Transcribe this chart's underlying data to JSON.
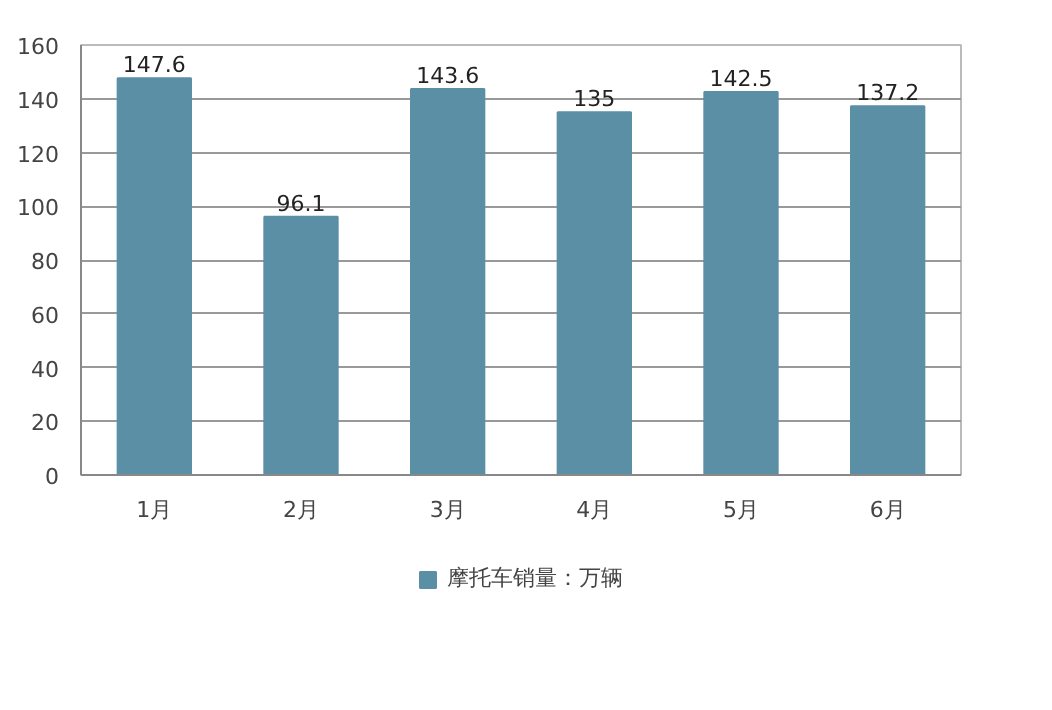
{
  "chart_data": {
    "type": "bar",
    "categories": [
      "1月",
      "2月",
      "3月",
      "4月",
      "5月",
      "6月"
    ],
    "series": [
      {
        "name": "摩托车销量：万辆",
        "color": "#5b8fa6",
        "values": [
          147.6,
          96.1,
          143.6,
          135,
          142.5,
          137.2
        ]
      }
    ],
    "ylim": [
      0,
      160
    ],
    "yticks": [
      0,
      20,
      40,
      60,
      80,
      100,
      120,
      140,
      160
    ],
    "grid": "y",
    "legend": "bottom",
    "data_labels": true
  }
}
